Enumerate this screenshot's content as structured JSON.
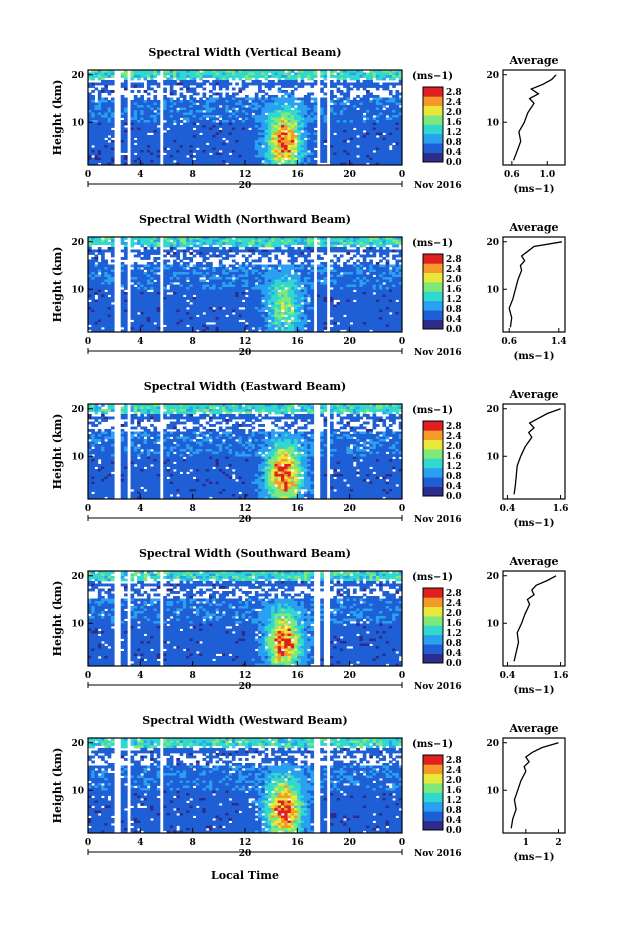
{
  "figure": {
    "xlabel": "Local Time",
    "date_day": "20",
    "date_month": "Nov 2016",
    "ylabel": "Height (km)",
    "cbar_unit": "(ms−1)",
    "avg_title": "Average",
    "avg_xlabel": "(ms−1)"
  },
  "chart_data": [
    {
      "type": "heatmap",
      "title": "Spectral Width (Vertical Beam)",
      "x_ticks": [
        "0",
        "4",
        "8",
        "12",
        "16",
        "20",
        "0"
      ],
      "xlim": [
        0,
        24
      ],
      "y_ticks": [
        "20",
        "10"
      ],
      "ylim": [
        1,
        21
      ],
      "colorbar": {
        "ticks": [
          "2.8",
          "2.4",
          "2.0",
          "1.6",
          "1.2",
          "0.8",
          "0.4",
          "0.0"
        ],
        "range": [
          0,
          3.0
        ]
      },
      "colors": [
        "#2e2c8a",
        "#1f5fd6",
        "#2aa0f0",
        "#30d8d0",
        "#7ee87a",
        "#e8e83a",
        "#f59a2a",
        "#e02020"
      ],
      "peak": 2.6,
      "gaps": [
        [
          2.0,
          2.5
        ],
        [
          3.0,
          3.3
        ],
        [
          5.5,
          5.8
        ],
        [
          17.5,
          17.8
        ],
        [
          18.2,
          18.6
        ]
      ],
      "average": {
        "title": "Average",
        "x_ticks": [
          "0.6",
          "1.0"
        ],
        "xlim": [
          0.5,
          1.2
        ],
        "ylim": [
          1,
          21
        ],
        "y_ticks": [
          "20",
          "10"
        ],
        "heights": [
          2,
          4,
          6,
          8,
          10,
          12,
          14,
          15,
          16,
          17,
          18,
          19,
          20
        ],
        "values": [
          0.62,
          0.66,
          0.7,
          0.68,
          0.74,
          0.78,
          0.85,
          0.8,
          0.9,
          0.82,
          0.95,
          1.05,
          1.1
        ]
      }
    },
    {
      "type": "heatmap",
      "title": "Spectral Width (Northward Beam)",
      "x_ticks": [
        "0",
        "4",
        "8",
        "12",
        "16",
        "20",
        "0"
      ],
      "xlim": [
        0,
        24
      ],
      "y_ticks": [
        "20",
        "10"
      ],
      "ylim": [
        1,
        21
      ],
      "colorbar": {
        "ticks": [
          "2.8",
          "2.4",
          "2.0",
          "1.6",
          "1.2",
          "0.8",
          "0.4",
          "0.0"
        ],
        "range": [
          0,
          3.0
        ]
      },
      "colors": [
        "#2e2c8a",
        "#1f5fd6",
        "#2aa0f0",
        "#30d8d0",
        "#7ee87a",
        "#e8e83a",
        "#f59a2a",
        "#e02020"
      ],
      "peak": 1.5,
      "gaps": [
        [
          2.0,
          2.5
        ],
        [
          3.0,
          3.3
        ],
        [
          5.5,
          5.8
        ],
        [
          17.2,
          17.5
        ],
        [
          18.2,
          18.6
        ]
      ],
      "average": {
        "title": "Average",
        "x_ticks": [
          "0.6",
          "1.4"
        ],
        "xlim": [
          0.5,
          1.5
        ],
        "ylim": [
          1,
          21
        ],
        "y_ticks": [
          "20",
          "10"
        ],
        "heights": [
          2,
          4,
          6,
          8,
          10,
          12,
          14,
          15,
          16,
          17,
          18,
          19,
          20
        ],
        "values": [
          0.62,
          0.64,
          0.6,
          0.66,
          0.7,
          0.74,
          0.8,
          0.78,
          0.85,
          0.8,
          0.9,
          1.0,
          1.45
        ]
      }
    },
    {
      "type": "heatmap",
      "title": "Spectral Width (Eastward Beam)",
      "x_ticks": [
        "0",
        "4",
        "8",
        "12",
        "16",
        "20",
        "0"
      ],
      "xlim": [
        0,
        24
      ],
      "y_ticks": [
        "20",
        "10"
      ],
      "ylim": [
        1,
        21
      ],
      "colorbar": {
        "ticks": [
          "2.8",
          "2.4",
          "2.0",
          "1.6",
          "1.2",
          "0.8",
          "0.4",
          "0.0"
        ],
        "range": [
          0,
          3.0
        ]
      },
      "colors": [
        "#2e2c8a",
        "#1f5fd6",
        "#2aa0f0",
        "#30d8d0",
        "#7ee87a",
        "#e8e83a",
        "#f59a2a",
        "#e02020"
      ],
      "peak": 2.7,
      "gaps": [
        [
          2.0,
          2.5
        ],
        [
          3.0,
          3.3
        ],
        [
          5.5,
          5.8
        ],
        [
          17.3,
          17.7
        ],
        [
          18.2,
          18.6
        ]
      ],
      "average": {
        "title": "Average",
        "x_ticks": [
          "0.4",
          "1.6"
        ],
        "xlim": [
          0.3,
          1.7
        ],
        "ylim": [
          1,
          21
        ],
        "y_ticks": [
          "20",
          "10"
        ],
        "heights": [
          2,
          4,
          6,
          8,
          10,
          12,
          14,
          15,
          16,
          17,
          18,
          19,
          20
        ],
        "values": [
          0.55,
          0.58,
          0.6,
          0.62,
          0.7,
          0.8,
          0.95,
          0.88,
          1.0,
          0.9,
          1.1,
          1.3,
          1.6
        ]
      }
    },
    {
      "type": "heatmap",
      "title": "Spectral Width (Southward Beam)",
      "x_ticks": [
        "0",
        "4",
        "8",
        "12",
        "16",
        "20",
        "0"
      ],
      "xlim": [
        0,
        24
      ],
      "y_ticks": [
        "20",
        "10"
      ],
      "ylim": [
        1,
        21
      ],
      "colorbar": {
        "ticks": [
          "2.8",
          "2.4",
          "2.0",
          "1.6",
          "1.2",
          "0.8",
          "0.4",
          "0.0"
        ],
        "range": [
          0,
          3.0
        ]
      },
      "colors": [
        "#2e2c8a",
        "#1f5fd6",
        "#2aa0f0",
        "#30d8d0",
        "#7ee87a",
        "#e8e83a",
        "#f59a2a",
        "#e02020"
      ],
      "peak": 2.6,
      "gaps": [
        [
          2.0,
          2.5
        ],
        [
          3.0,
          3.3
        ],
        [
          5.5,
          5.8
        ],
        [
          17.3,
          17.7
        ],
        [
          18.0,
          18.4
        ]
      ],
      "average": {
        "title": "Average",
        "x_ticks": [
          "0.4",
          "1.6"
        ],
        "xlim": [
          0.3,
          1.7
        ],
        "ylim": [
          1,
          21
        ],
        "y_ticks": [
          "20",
          "10"
        ],
        "heights": [
          2,
          4,
          6,
          8,
          10,
          12,
          14,
          15,
          16,
          17,
          18,
          19,
          20
        ],
        "values": [
          0.55,
          0.6,
          0.65,
          0.62,
          0.72,
          0.8,
          0.9,
          0.85,
          1.0,
          0.95,
          1.05,
          1.3,
          1.5
        ]
      }
    },
    {
      "type": "heatmap",
      "title": "Spectral Width (Westward Beam)",
      "x_ticks": [
        "0",
        "4",
        "8",
        "12",
        "16",
        "20",
        "0"
      ],
      "xlim": [
        0,
        24
      ],
      "y_ticks": [
        "20",
        "10"
      ],
      "ylim": [
        1,
        21
      ],
      "colorbar": {
        "ticks": [
          "2.8",
          "2.4",
          "2.0",
          "1.6",
          "1.2",
          "0.8",
          "0.4",
          "0.0"
        ],
        "range": [
          0,
          3.0
        ]
      },
      "colors": [
        "#2e2c8a",
        "#1f5fd6",
        "#2aa0f0",
        "#30d8d0",
        "#7ee87a",
        "#e8e83a",
        "#f59a2a",
        "#e02020"
      ],
      "peak": 2.7,
      "gaps": [
        [
          2.0,
          2.5
        ],
        [
          3.0,
          3.3
        ],
        [
          5.5,
          5.8
        ],
        [
          17.3,
          17.7
        ],
        [
          18.2,
          18.6
        ]
      ],
      "average": {
        "title": "Average",
        "x_ticks": [
          "1",
          "2"
        ],
        "xlim": [
          0.3,
          2.2
        ],
        "ylim": [
          1,
          21
        ],
        "y_ticks": [
          "20",
          "10"
        ],
        "heights": [
          2,
          4,
          6,
          8,
          10,
          12,
          14,
          15,
          16,
          17,
          18,
          19,
          20
        ],
        "values": [
          0.55,
          0.6,
          0.7,
          0.65,
          0.75,
          0.85,
          1.0,
          0.95,
          1.1,
          1.0,
          1.2,
          1.5,
          2.0
        ]
      }
    }
  ]
}
